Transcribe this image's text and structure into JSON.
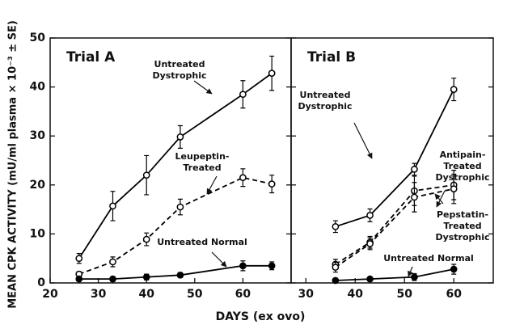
{
  "chart_data": [
    {
      "type": "line",
      "title": "Trial A",
      "y_label": "MEAN CPK ACTIVITY (mU/ml plasma × 10⁻³ ± SE)",
      "x_label": "DAYS (ex ovo)",
      "xlim": [
        20,
        70
      ],
      "xticks": [
        20,
        30,
        40,
        50,
        60
      ],
      "ylim": [
        0,
        50
      ],
      "yticks": [
        0,
        10,
        20,
        30,
        40,
        50
      ],
      "series": [
        {
          "name": "Untreated Dystrophic",
          "color": "#000000",
          "style": "solid",
          "marker": "open",
          "x": [
            26,
            33,
            40,
            47,
            60,
            66
          ],
          "values": [
            5,
            15.7,
            22,
            29.8,
            38.5,
            42.8
          ],
          "errors": [
            1,
            3,
            4,
            2.3,
            2.8,
            3.5
          ]
        },
        {
          "name": "Leupeptin-Treated Dystrophic",
          "color": "#000000",
          "style": "dashed",
          "marker": "open",
          "x": [
            26,
            33,
            40,
            47,
            60,
            66
          ],
          "values": [
            1.8,
            4.3,
            8.9,
            15.5,
            21.5,
            20.2
          ],
          "errors": [
            0.5,
            1,
            1.3,
            1.6,
            1.8,
            1.8
          ]
        },
        {
          "name": "Untreated Normal",
          "color": "#000000",
          "style": "solid",
          "marker": "filled",
          "x": [
            26,
            33,
            40,
            47,
            60,
            66
          ],
          "values": [
            0.8,
            0.8,
            1.2,
            1.6,
            3.5,
            3.5
          ],
          "errors": [
            0.3,
            0.5,
            0.6,
            0.5,
            1,
            0.8
          ]
        }
      ]
    },
    {
      "type": "line",
      "title": "Trial B",
      "xlim": [
        27,
        68
      ],
      "xticks": [
        30,
        40,
        50,
        60
      ],
      "ylim": [
        0,
        50
      ],
      "yticks": [
        0,
        10,
        20,
        30,
        40,
        50
      ],
      "series": [
        {
          "name": "Untreated Dystrophic",
          "color": "#000000",
          "style": "solid",
          "marker": "open",
          "x": [
            36,
            43,
            52,
            60
          ],
          "values": [
            11.5,
            13.8,
            23.2,
            39.5
          ],
          "errors": [
            1.2,
            1.3,
            1.2,
            2.3
          ]
        },
        {
          "name": "Antipain-Treated Dystrophic",
          "color": "#000000",
          "style": "dashed",
          "marker": "open",
          "x": [
            36,
            43,
            52,
            60
          ],
          "values": [
            3.8,
            8.3,
            18.8,
            20
          ],
          "errors": [
            1,
            1.2,
            3,
            3
          ]
        },
        {
          "name": "Pepstatin-Treated Dystrophic",
          "color": "#000000",
          "style": "dashed",
          "marker": "open",
          "x": [
            36,
            43,
            52,
            60
          ],
          "values": [
            3.2,
            8,
            17.5,
            19.2
          ],
          "errors": [
            1,
            1.2,
            3,
            3
          ]
        },
        {
          "name": "Untreated Normal",
          "color": "#000000",
          "style": "solid",
          "marker": "filled",
          "x": [
            36,
            43,
            52,
            60
          ],
          "values": [
            0.5,
            0.8,
            1.2,
            2.8
          ],
          "errors": [
            0.3,
            0.4,
            0.7,
            1
          ]
        }
      ]
    }
  ]
}
